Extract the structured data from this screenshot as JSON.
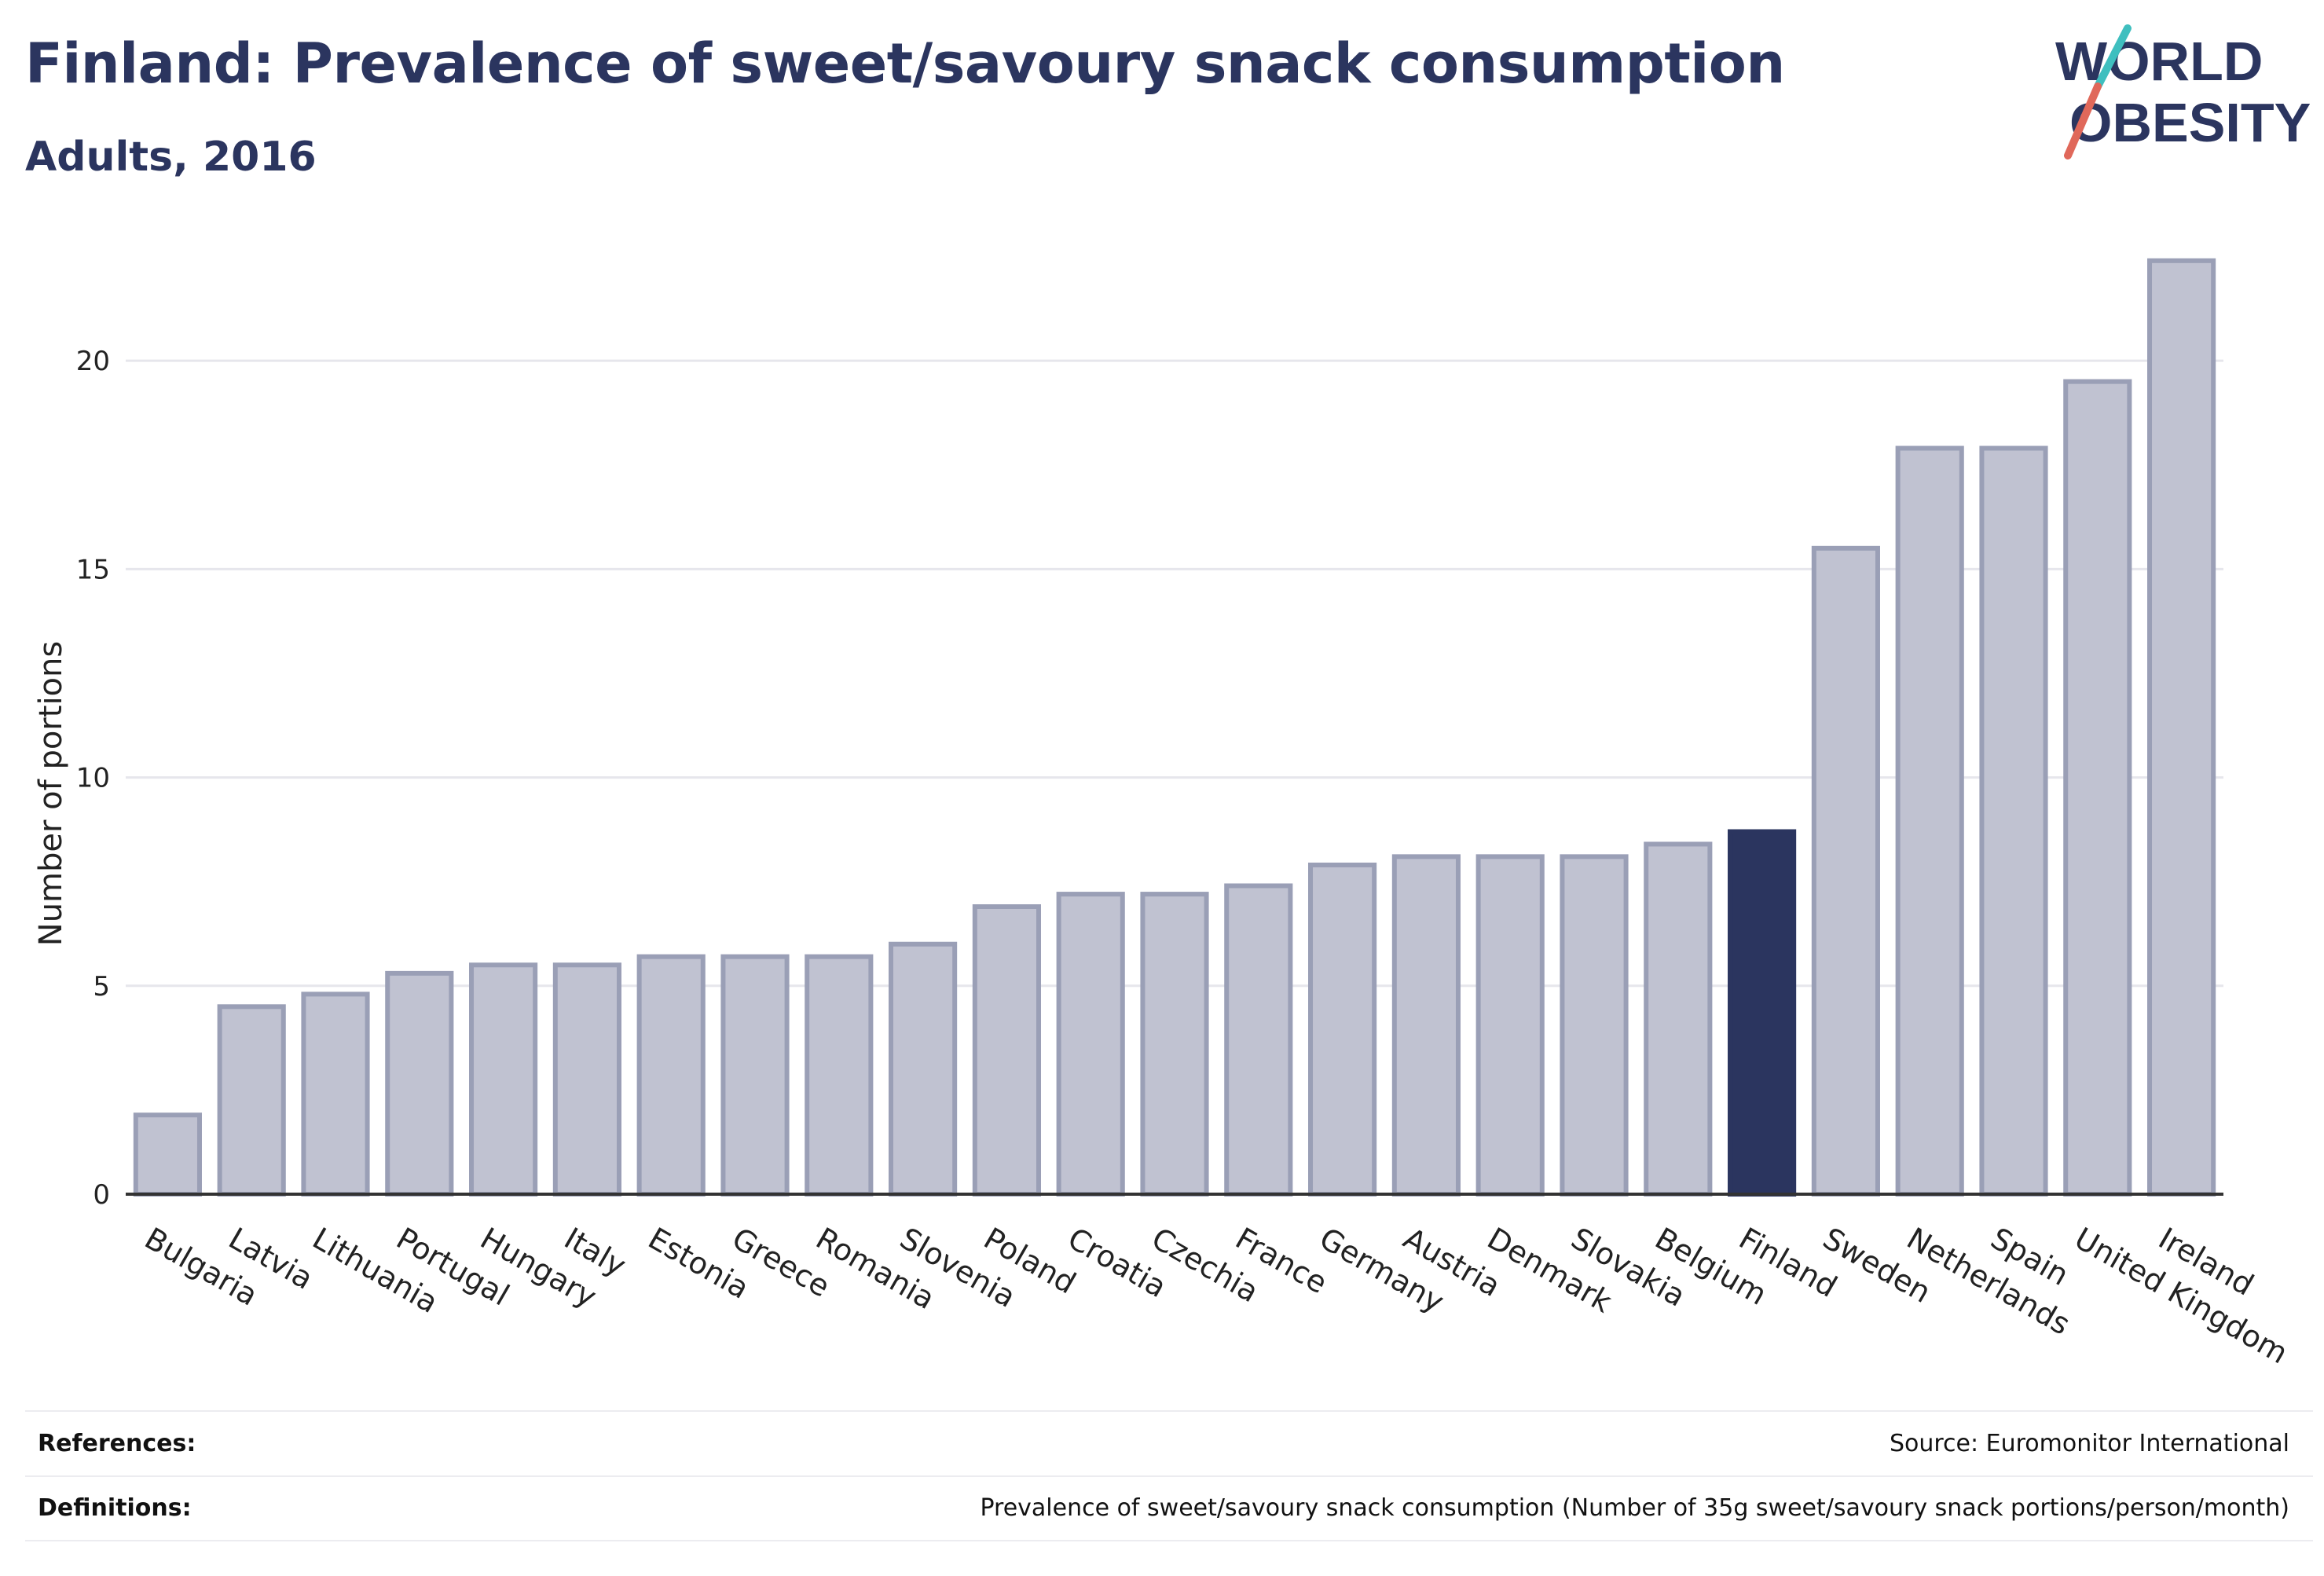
{
  "header": {
    "title": "Finland: Prevalence of sweet/savoury snack consumption",
    "subtitle": "Adults, 2016"
  },
  "logo": {
    "line1": "WORLD",
    "line2": "OBESITY",
    "slash_color_top": "#3fbfbf",
    "slash_color_bottom": "#e0685a",
    "text_color": "#2b355f"
  },
  "chart_data": {
    "type": "bar",
    "title": "Finland: Prevalence of sweet/savoury snack consumption",
    "subtitle": "Adults, 2016",
    "xlabel": "",
    "ylabel": "Number of portions",
    "ylim": [
      0,
      23
    ],
    "yticks": [
      0,
      5,
      10,
      15,
      20
    ],
    "grid": true,
    "categories": [
      "Bulgaria",
      "Latvia",
      "Lithuania",
      "Portugal",
      "Hungary",
      "Italy",
      "Estonia",
      "Greece",
      "Romania",
      "Slovenia",
      "Poland",
      "Croatia",
      "Czechia",
      "France",
      "Germany",
      "Austria",
      "Denmark",
      "Slovakia",
      "Belgium",
      "Finland",
      "Sweden",
      "Netherlands",
      "Spain",
      "United Kingdom",
      "Ireland"
    ],
    "values": [
      1.9,
      4.5,
      4.8,
      5.3,
      5.5,
      5.5,
      5.7,
      5.7,
      5.7,
      6.0,
      6.9,
      7.2,
      7.2,
      7.4,
      7.9,
      8.1,
      8.1,
      8.1,
      8.4,
      8.7,
      15.5,
      17.9,
      17.9,
      19.5,
      22.4
    ],
    "highlight": "Finland",
    "colors": {
      "bar_fill": "#c0c2d1",
      "bar_stroke": "#9a9fb6",
      "highlight_fill": "#2b355f",
      "grid": "#e6e6ec",
      "axis": "#333333"
    }
  },
  "footer": {
    "references_label": "References:",
    "references_value": "Source: Euromonitor International",
    "definitions_label": "Definitions:",
    "definitions_value": "Prevalence of sweet/savoury snack consumption (Number of 35g sweet/savoury snack portions/person/month)"
  }
}
